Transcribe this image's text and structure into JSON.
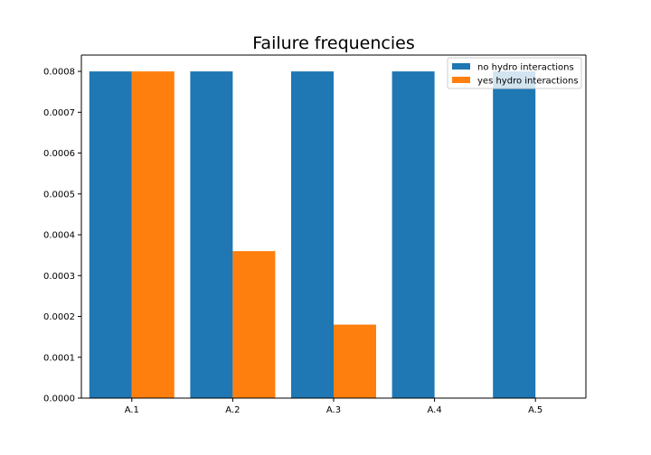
{
  "chart_data": {
    "type": "bar",
    "title": "Failure frequencies",
    "xlabel": "",
    "ylabel": "",
    "categories": [
      "A.1",
      "A.2",
      "A.3",
      "A.4",
      "A.5"
    ],
    "series": [
      {
        "name": "no hydro interactions",
        "color": "#1f77b4",
        "values": [
          0.0008,
          0.0008,
          0.0008,
          0.0008,
          0.0008
        ]
      },
      {
        "name": "yes hydro interactions",
        "color": "#ff7f0e",
        "values": [
          0.0008,
          0.00036,
          0.00018,
          0.0,
          0.0
        ]
      }
    ],
    "ylim": [
      0,
      0.00084
    ],
    "yticks": [
      "0.0000",
      "0.0001",
      "0.0002",
      "0.0003",
      "0.0004",
      "0.0005",
      "0.0006",
      "0.0007",
      "0.0008"
    ],
    "ytick_values": [
      0,
      0.0001,
      0.0002,
      0.0003,
      0.0004,
      0.0005,
      0.0006,
      0.0007,
      0.0008
    ],
    "grid": false,
    "legend_position": "top-right"
  }
}
